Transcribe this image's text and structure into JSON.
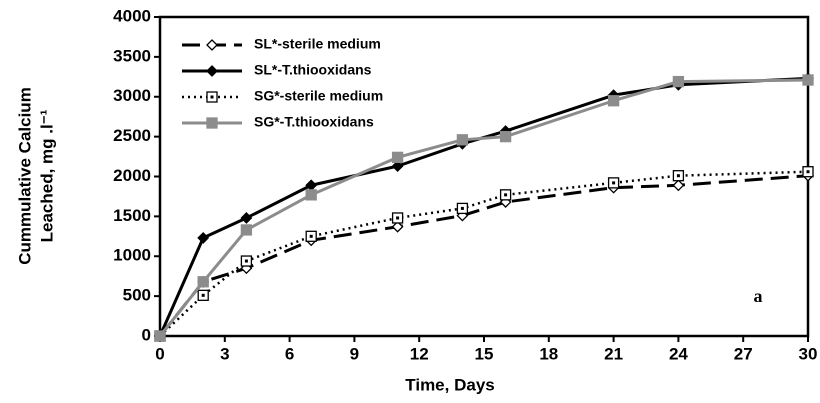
{
  "chart_data": {
    "type": "line",
    "xlabel": "Time, Days",
    "ylabel": [
      "Cummulative Calcium",
      "Leached, mg .l⁻¹"
    ],
    "annotation": "a",
    "xlim": [
      0,
      30
    ],
    "xticks": [
      0,
      3,
      6,
      9,
      12,
      15,
      18,
      21,
      24,
      27,
      30
    ],
    "ylim": [
      0,
      4000
    ],
    "yticks": [
      0,
      500,
      1000,
      1500,
      2000,
      2500,
      3000,
      3500,
      4000
    ],
    "legend": "upper left",
    "x": [
      0,
      2,
      4,
      7,
      11,
      14,
      16,
      21,
      24,
      30
    ],
    "series": [
      {
        "name": "SL*-sterile medium",
        "color": "#000000",
        "line_style": "dashed",
        "marker": "open-diamond",
        "values": [
          0,
          680,
          850,
          1200,
          1370,
          1510,
          1680,
          1860,
          1890,
          2010
        ]
      },
      {
        "name": "SL*-T.thiooxidans",
        "color": "#000000",
        "line_style": "solid",
        "marker": "filled-diamond",
        "values": [
          0,
          1230,
          1480,
          1890,
          2130,
          2410,
          2570,
          3020,
          3150,
          3230
        ]
      },
      {
        "name": "SG*-sterile medium",
        "color": "#000000",
        "line_style": "dotted",
        "marker": "open-square",
        "values": [
          0,
          510,
          940,
          1250,
          1480,
          1600,
          1770,
          1920,
          2010,
          2060
        ]
      },
      {
        "name": "SG*-T.thiooxidans",
        "color": "#8c8c8c",
        "line_style": "solid",
        "marker": "filled-square",
        "values": [
          0,
          680,
          1330,
          1770,
          2240,
          2460,
          2500,
          2950,
          3190,
          3210
        ]
      }
    ]
  }
}
